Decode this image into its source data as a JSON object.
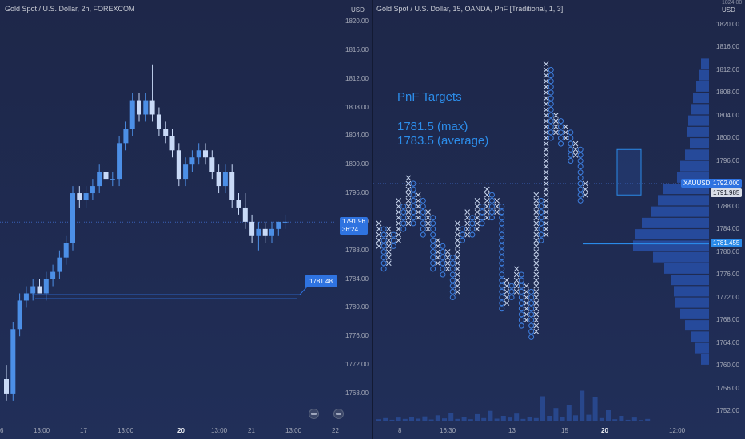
{
  "left_chart": {
    "title": "Gold Spot / U.S. Dollar, 2h, FOREXCOM",
    "currency": "USD",
    "price_ticks": [
      "1820.00",
      "1816.00",
      "1812.00",
      "1808.00",
      "1804.00",
      "1800.00",
      "1796.00",
      "1792.00",
      "1788.00",
      "1784.00",
      "1780.00",
      "1776.00",
      "1772.00",
      "1768.00"
    ],
    "time_ticks": [
      {
        "label": "6",
        "bold": false
      },
      {
        "label": "13:00",
        "bold": false
      },
      {
        "label": "17",
        "bold": false
      },
      {
        "label": "13:00",
        "bold": false
      },
      {
        "label": "20",
        "bold": true
      },
      {
        "label": "13:00",
        "bold": false
      },
      {
        "label": "21",
        "bold": false
      },
      {
        "label": "13:00",
        "bold": false
      },
      {
        "label": "22",
        "bold": false
      }
    ],
    "last_price": "1791.96",
    "countdown": "36:24",
    "target_label": "1781.48",
    "colors": {
      "up": "#4c8fe6",
      "down": "#c9daf7",
      "line": "#2d6ad8",
      "target": "#2f73e0"
    }
  },
  "right_chart": {
    "title": "Gold Spot / U.S. Dollar, 15, OANDA, PnF [Traditional, 1, 3]",
    "currency": "USD",
    "price_ticks_top": "1824.00",
    "price_ticks": [
      "1820.00",
      "1816.00",
      "1812.00",
      "1808.00",
      "1804.00",
      "1800.00",
      "1796.00",
      "1792.00",
      "1788.00",
      "1784.00",
      "1780.00",
      "1776.00",
      "1772.00",
      "1768.00",
      "1764.00",
      "1760.00",
      "1756.00",
      "1752.00"
    ],
    "time_ticks": [
      {
        "label": "8",
        "bold": false
      },
      {
        "label": "16:30",
        "bold": false
      },
      {
        "label": "13",
        "bold": false
      },
      {
        "label": "15",
        "bold": false
      },
      {
        "label": "20",
        "bold": true
      },
      {
        "label": "12:00",
        "bold": false
      }
    ],
    "annotation_title": "PnF Targets",
    "annotation_max": "1781.5 (max)",
    "annotation_avg": "1783.5 (average)",
    "symbol_tag": "XAUUSD",
    "symbol_price": "1792.000",
    "last_price": "1791.985",
    "target_price": "1781.455",
    "colors": {
      "x_mark": "#c9d6ee",
      "o_mark": "#3d7fe0",
      "target_line": "#2a8ae8",
      "volume": "#2b4e9a"
    }
  },
  "chart_data": [
    {
      "type": "candlestick",
      "title": "Gold Spot / U.S. Dollar, 2h, FOREXCOM",
      "ylim": [
        1764,
        1822
      ],
      "ohlc": [
        [
          1770,
          1772,
          1767,
          1768
        ],
        [
          1768,
          1778,
          1767,
          1777
        ],
        [
          1777,
          1782,
          1776,
          1781
        ],
        [
          1781,
          1783,
          1780,
          1782
        ],
        [
          1782,
          1784,
          1781,
          1783
        ],
        [
          1783,
          1784,
          1782,
          1782
        ],
        [
          1782,
          1785,
          1781,
          1784
        ],
        [
          1784,
          1786,
          1783,
          1785
        ],
        [
          1785,
          1788,
          1784,
          1787
        ],
        [
          1787,
          1790,
          1786,
          1789
        ],
        [
          1789,
          1797,
          1788,
          1796
        ],
        [
          1796,
          1797,
          1794,
          1795
        ],
        [
          1795,
          1797,
          1794,
          1796
        ],
        [
          1796,
          1798,
          1795,
          1797
        ],
        [
          1797,
          1800,
          1796,
          1799
        ],
        [
          1799,
          1799,
          1797,
          1798
        ],
        [
          1798,
          1799,
          1797,
          1798
        ],
        [
          1798,
          1804,
          1797,
          1803
        ],
        [
          1803,
          1806,
          1802,
          1805
        ],
        [
          1805,
          1810,
          1804,
          1809
        ],
        [
          1809,
          1810,
          1806,
          1807
        ],
        [
          1807,
          1810,
          1806,
          1809
        ],
        [
          1809,
          1814,
          1806,
          1807
        ],
        [
          1807,
          1808,
          1804,
          1805
        ],
        [
          1805,
          1806,
          1803,
          1804
        ],
        [
          1804,
          1805,
          1801,
          1802
        ],
        [
          1802,
          1803,
          1797,
          1798
        ],
        [
          1798,
          1801,
          1797,
          1800
        ],
        [
          1800,
          1802,
          1799,
          1801
        ],
        [
          1801,
          1803,
          1800,
          1802
        ],
        [
          1802,
          1803,
          1800,
          1801
        ],
        [
          1801,
          1802,
          1798,
          1799
        ],
        [
          1799,
          1800,
          1796,
          1797
        ],
        [
          1797,
          1800,
          1796,
          1799
        ],
        [
          1799,
          1800,
          1794,
          1795
        ],
        [
          1795,
          1796,
          1793,
          1794
        ],
        [
          1794,
          1796,
          1791,
          1792
        ],
        [
          1792,
          1793,
          1789,
          1790
        ],
        [
          1790,
          1792,
          1788,
          1791
        ],
        [
          1791,
          1792,
          1789,
          1790
        ],
        [
          1790,
          1792,
          1789,
          1791
        ],
        [
          1791,
          1792,
          1790,
          1792
        ],
        [
          1792,
          1793,
          1791,
          1792
        ]
      ],
      "last": 1791.96,
      "target": 1781.48
    },
    {
      "type": "point_and_figure",
      "title": "Gold Spot / U.S. Dollar, 15, OANDA, PnF [Traditional, 1, 3]",
      "ylim": [
        1750,
        1825
      ],
      "box_size": 1,
      "columns": [
        {
          "kind": "X",
          "low": 1781,
          "high": 1785
        },
        {
          "kind": "O",
          "low": 1777,
          "high": 1784
        },
        {
          "kind": "X",
          "low": 1778,
          "high": 1784
        },
        {
          "kind": "O",
          "low": 1781,
          "high": 1783
        },
        {
          "kind": "X",
          "low": 1782,
          "high": 1789
        },
        {
          "kind": "O",
          "low": 1784,
          "high": 1788
        },
        {
          "kind": "X",
          "low": 1785,
          "high": 1793
        },
        {
          "kind": "O",
          "low": 1785,
          "high": 1792
        },
        {
          "kind": "X",
          "low": 1786,
          "high": 1790
        },
        {
          "kind": "O",
          "low": 1783,
          "high": 1789
        },
        {
          "kind": "X",
          "low": 1784,
          "high": 1787
        },
        {
          "kind": "O",
          "low": 1777,
          "high": 1786
        },
        {
          "kind": "X",
          "low": 1778,
          "high": 1782
        },
        {
          "kind": "O",
          "low": 1776,
          "high": 1781
        },
        {
          "kind": "X",
          "low": 1777,
          "high": 1780
        },
        {
          "kind": "O",
          "low": 1772,
          "high": 1779
        },
        {
          "kind": "X",
          "low": 1773,
          "high": 1785
        },
        {
          "kind": "O",
          "low": 1782,
          "high": 1784
        },
        {
          "kind": "X",
          "low": 1783,
          "high": 1787
        },
        {
          "kind": "O",
          "low": 1783,
          "high": 1786
        },
        {
          "kind": "X",
          "low": 1784,
          "high": 1789
        },
        {
          "kind": "O",
          "low": 1785,
          "high": 1788
        },
        {
          "kind": "X",
          "low": 1786,
          "high": 1791
        },
        {
          "kind": "O",
          "low": 1786,
          "high": 1790
        },
        {
          "kind": "X",
          "low": 1787,
          "high": 1789
        },
        {
          "kind": "O",
          "low": 1770,
          "high": 1788
        },
        {
          "kind": "X",
          "low": 1771,
          "high": 1775
        },
        {
          "kind": "O",
          "low": 1772,
          "high": 1774
        },
        {
          "kind": "X",
          "low": 1773,
          "high": 1777
        },
        {
          "kind": "O",
          "low": 1767,
          "high": 1776
        },
        {
          "kind": "X",
          "low": 1768,
          "high": 1774
        },
        {
          "kind": "O",
          "low": 1765,
          "high": 1773
        },
        {
          "kind": "X",
          "low": 1766,
          "high": 1790
        },
        {
          "kind": "O",
          "low": 1782,
          "high": 1789
        },
        {
          "kind": "X",
          "low": 1783,
          "high": 1813
        },
        {
          "kind": "O",
          "low": 1800,
          "high": 1812
        },
        {
          "kind": "X",
          "low": 1801,
          "high": 1804
        },
        {
          "kind": "O",
          "low": 1799,
          "high": 1803
        },
        {
          "kind": "X",
          "low": 1800,
          "high": 1802
        },
        {
          "kind": "O",
          "low": 1796,
          "high": 1801
        },
        {
          "kind": "X",
          "low": 1797,
          "high": 1799
        },
        {
          "kind": "O",
          "low": 1789,
          "high": 1798
        },
        {
          "kind": "X",
          "low": 1790,
          "high": 1792
        }
      ],
      "target": 1781.455,
      "last": 1791.985
    }
  ]
}
